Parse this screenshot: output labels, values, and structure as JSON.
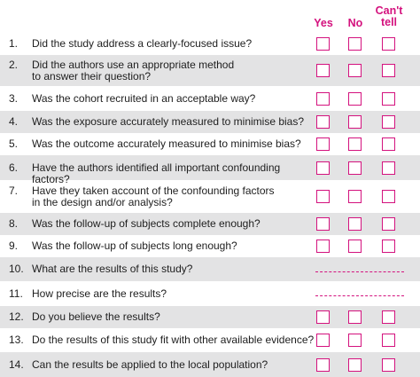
{
  "header": {
    "columns": [
      "Yes",
      "No",
      "Can't tell"
    ]
  },
  "rows": [
    {
      "number": "1.",
      "question": "Did the study address a clearly-focused issue?"
    },
    {
      "number": "2.",
      "question": "Did the authors use an appropriate method\nto answer their question?"
    },
    {
      "number": "3.",
      "question": "Was the cohort recruited in an acceptable way?"
    },
    {
      "number": "4.",
      "question": "Was the exposure accurately measured to minimise bias?"
    },
    {
      "number": "5.",
      "question": "Was the outcome accurately measured to minimise bias?"
    },
    {
      "number": "6.",
      "question": "Have the authors identified all important confounding factors?"
    },
    {
      "number": "7.",
      "question": "Have they taken account of the confounding factors\nin the design and/or analysis?"
    },
    {
      "number": "8.",
      "question": "Was the follow-up of subjects complete enough?"
    },
    {
      "number": "9.",
      "question": "Was the follow-up of subjects long enough?"
    },
    {
      "number": "10.",
      "question": "What are the results of this study?"
    },
    {
      "number": "11.",
      "question": "How precise are the results?"
    },
    {
      "number": "12.",
      "question": "Do you believe the results?"
    },
    {
      "number": "13.",
      "question": "Do the results of this study fit with other available evidence?"
    },
    {
      "number": "14.",
      "question": "Can the results be applied to the local population?"
    }
  ]
}
